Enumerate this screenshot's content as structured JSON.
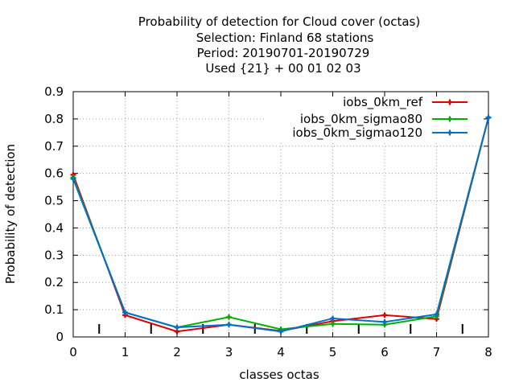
{
  "chart_data": {
    "type": "line",
    "title_lines": [
      "Probability of detection  for Cloud cover (octas)",
      "Selection: Finland     68 stations",
      "Period: 20190701-20190729",
      "Used {21} + 00 01 02 03"
    ],
    "xlabel": "classes octas",
    "ylabel": "Probability of detection",
    "xlim": [
      0,
      8
    ],
    "ylim": [
      0,
      0.9
    ],
    "xticks": [
      "0",
      "1",
      "2",
      "3",
      "4",
      "5",
      "6",
      "7",
      "8"
    ],
    "yticks": [
      "0",
      "0.1",
      "0.2",
      "0.3",
      "0.4",
      "0.5",
      "0.6",
      "0.7",
      "0.8",
      "0.9"
    ],
    "grid": true,
    "legend_position": "top-right",
    "x": [
      0,
      1,
      2,
      3,
      4,
      5,
      6,
      7,
      8
    ],
    "series": [
      {
        "name": "iobs_0km_ref",
        "color": "#e00000",
        "values": [
          0.595,
          0.08,
          0.02,
          0.045,
          0.022,
          0.058,
          0.08,
          0.066,
          0.805
        ]
      },
      {
        "name": "iobs_0km_sigmao80",
        "color": "#00b000",
        "values": [
          0.585,
          0.09,
          0.035,
          0.073,
          0.028,
          0.048,
          0.045,
          0.076,
          0.805
        ]
      },
      {
        "name": "iobs_0km_sigmao120",
        "color": "#0070d0",
        "values": [
          0.58,
          0.09,
          0.035,
          0.045,
          0.02,
          0.068,
          0.055,
          0.083,
          0.805
        ]
      }
    ],
    "bottom_markers_x": [
      0.5,
      1.5,
      2.5,
      3.5,
      4.5,
      5.5,
      6.5,
      7.5
    ]
  }
}
